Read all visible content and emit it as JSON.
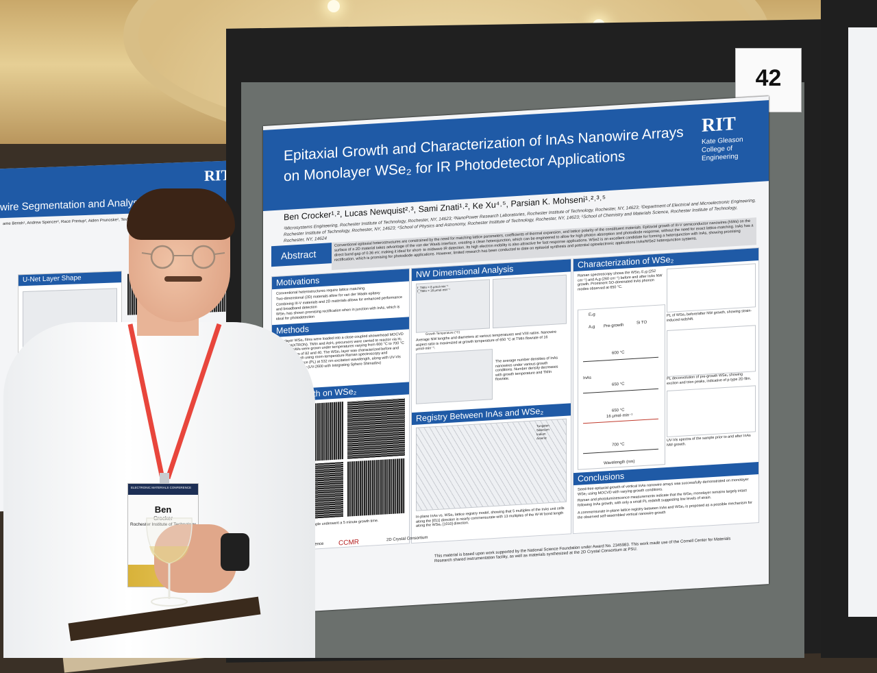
{
  "booth_number": "42",
  "colors": {
    "poster_blue": "#1f5aa6",
    "board_grey": "#6b706d",
    "frame_black": "#202020",
    "lanyard_red": "#e8463c"
  },
  "main_poster": {
    "logo": {
      "mark": "RIT",
      "college": "Kate Gleason College of Engineering"
    },
    "title_line1": "Epitaxial Growth and Characterization of InAs Nanowire Arrays",
    "title_line2": "on Monolayer WSe₂ for IR Photodetector Applications",
    "authors": "Ben Crocker¹˒², Lucas Newquist²˒³, Sami Znati¹˒², Ke Xu⁴˒⁵, Parsian K. Mohseni¹˒²˒³˒⁵",
    "affiliations": "¹Microsystems Engineering, Rochester Institute of Technology, Rochester, NY, 14623; ²NanoPower Research Laboratories, Rochester Institute of Technology, Rochester, NY, 14623; ³Department of Electrical and Microelectronic Engineering, Rochester Institute of Technology, Rochester, NY, 14623; ⁴School of Physics and Astronomy, Rochester Institute of Technology, Rochester, NY, 14623; ⁵School of Chemistry and Materials Science, Rochester Institute of Technology, Rochester, NY, 14624",
    "abstract_label": "Abstract",
    "abstract_text": "Conventional epitaxial heterostructures are constrained by the need for matching lattice parameters, coefficients of thermal expansion, and lattice polarity of the constituent materials. Epitaxial growth of III-V semiconductor nanowires (NWs) on the surface of a 2D material takes advantage of the van der Waals interface, creating a clean heterojunction, which can be engineered to allow for high photon absorption and photodiode response, without the need for exact lattice-matching. InAs has a direct band gap of 0.36 eV, making it ideal for short- to midwave IR detection. Its high electron mobility is also attractive for fast response applications. WSe2 is an excellent candidate for forming a heterojunction with InAs, showing promising rectification, which is promising for photodiode applications. However, limited research has been conducted to date on epitaxial synthesis and potential optoelectronic applications InAs/WSe2 heterojunction systems.",
    "sections": {
      "motivations": {
        "heading": "Motivations",
        "bullets": [
          "Conventional heterostructures require lattice matching.",
          "Two-dimensional (2D) materials allow for van der Waals epitaxy",
          "Combining III-V materials and 2D materials allows for enhanced performance and broadband detection",
          "WSe₂ has shown promising rectification when in junction with InAs, which is ideal for photodetection"
        ]
      },
      "methods": {
        "heading": "Methods",
        "text": "Monolayer WSe₂ films were loaded into a close-coupled showerhead MOCVD reactor (AIXTRON). TMIn and AsH₃ precursors were carried to reactor via H₂ gas. InAs NWs were grown under temperatures varying from 600 °C to 700 °C and V/III ratios of 82 and 40. The WSe₂ layer was characterized before and after InAs growth using room-temperature Raman spectroscopy and photoluminescence (PL) at 532 nm excitation wavelength, along with UV-Vis spectrophotometry (UV-2600 with Integrating Sphere Shimadzu)"
      },
      "nw_growth": {
        "heading": "NW Growth on WSe₂",
        "caption": "Each sample underwent a 5 minute growth time."
      },
      "nw_dimensional": {
        "heading": "NW Dimensional Analysis",
        "xlabel": "Growth Temperature (°C)",
        "legend": [
          "f_TMIn = 8 μmol·min⁻¹",
          "f_TMIn = 16 μmol·min⁻¹"
        ],
        "caption": "Average NW lengths and diameters at various temperatures and V/III ratios. Nanowire aspect ratio is maximized at growth temperature of 650 °C at TMIn flowrate of 16 μmol·min⁻¹.",
        "density_caption": "The average number densities of InAs nanowires under various growth conditions. Number density decreases with growth temperature and TMIn flowrate."
      },
      "registry": {
        "heading": "Registry Between InAs and WSe₂",
        "legend": [
          "Tungsten",
          "Selenium",
          "Indium",
          "Arsenic"
        ],
        "caption": "In-plane InAs vs. WSe₂ lattice registry model, showing that 5 multiples of the InAs unit cells along the [0̄11] direction is nearly commensurate with 13 multiples of the W-W bond length along the WSe₂ [1010] direction."
      },
      "characterization": {
        "heading": "Characterization of WSe₂",
        "raman_text": "Raman spectroscopy shows the WSe₂ E₂g (252 cm⁻¹) and A₁g (260 cm⁻¹) before and after InAs NW growth. Prominent SO-dominated InAs phonon modes observed at 650 °C.",
        "raman_labels": [
          "E₂g",
          "A₁g",
          "Pre-growth",
          "Si TO",
          "600 °C",
          "InAs",
          "650 °C",
          "650 °C",
          "16 μmol·min⁻¹",
          "700 °C"
        ],
        "raman_xlabel": "Wavelength (nm)",
        "raman_ylabel": "Intensity (a.u.)",
        "pl_caption": "PL of WSe₂ before/after NW growth, showing strain-induced redshift.",
        "pl_legend": [
          "Pregrowth",
          "600 °C",
          "650 °C",
          "700 °C"
        ],
        "decon_caption": "PL deconvolution of pre-growth WSe₂ showing exciton and trion peaks, indicative of p-type 2D film.",
        "uvvis_caption": "UV-Vis spectra of the sample prior to and after InAs NW growth.",
        "uvvis_legend": [
          "WSe2 Pre-growth",
          "WSe2 w/ InAs at 600 °C",
          "WSe2 w/ InAs at 650 °C",
          "WSe2 w/ InAs at 700 °C"
        ]
      },
      "conclusions": {
        "heading": "Conclusions",
        "bullets": [
          "Seed-free epitaxial growth of vertical InAs nanowire arrays was successfully demonstrated on monolayer WSe₂ using MOCVD with varying growth conditions.",
          "Raman and photoluminescence measurements indicate that the WSe₂ monolayer remains largely intact following InAs growth, with only a small PL redshift suggesting low levels of strain.",
          "A commensurate in-plane lattice registry between InAs and WSe₂ is proposed as a possible mechanism for the observed self-assembled vertical nanowire growth"
        ]
      }
    },
    "sponsors": [
      "U.S. National Science Foundation",
      "CCMR",
      "2D Crystal Consortium"
    ],
    "acknowledgment": "This material is based upon work supported by the National Science Foundation under Award No. 2345983. This work made use of the Cornell Center for Materials Research shared instrumentation facility, as well as materials synthesized at the 2D Crystal Consortium at PSU."
  },
  "left_poster": {
    "logo": {
      "mark": "RIT",
      "college": "Kate Gleason College of Engineering"
    },
    "title_fragment": "wire Segmentation and Analysis Via U",
    "authors_fragment": "ame Berish¹, Andrew Spencer², Race Printup², Aiden Prunoske², Tevfik Ozk",
    "section": "U-Net Layer Shape"
  },
  "badge": {
    "conference": "ELECTRONIC MATERIALS CONFERENCE",
    "first_name": "Ben",
    "last_name": "Crocker",
    "affiliation": "Rochester Institute of Technology"
  }
}
